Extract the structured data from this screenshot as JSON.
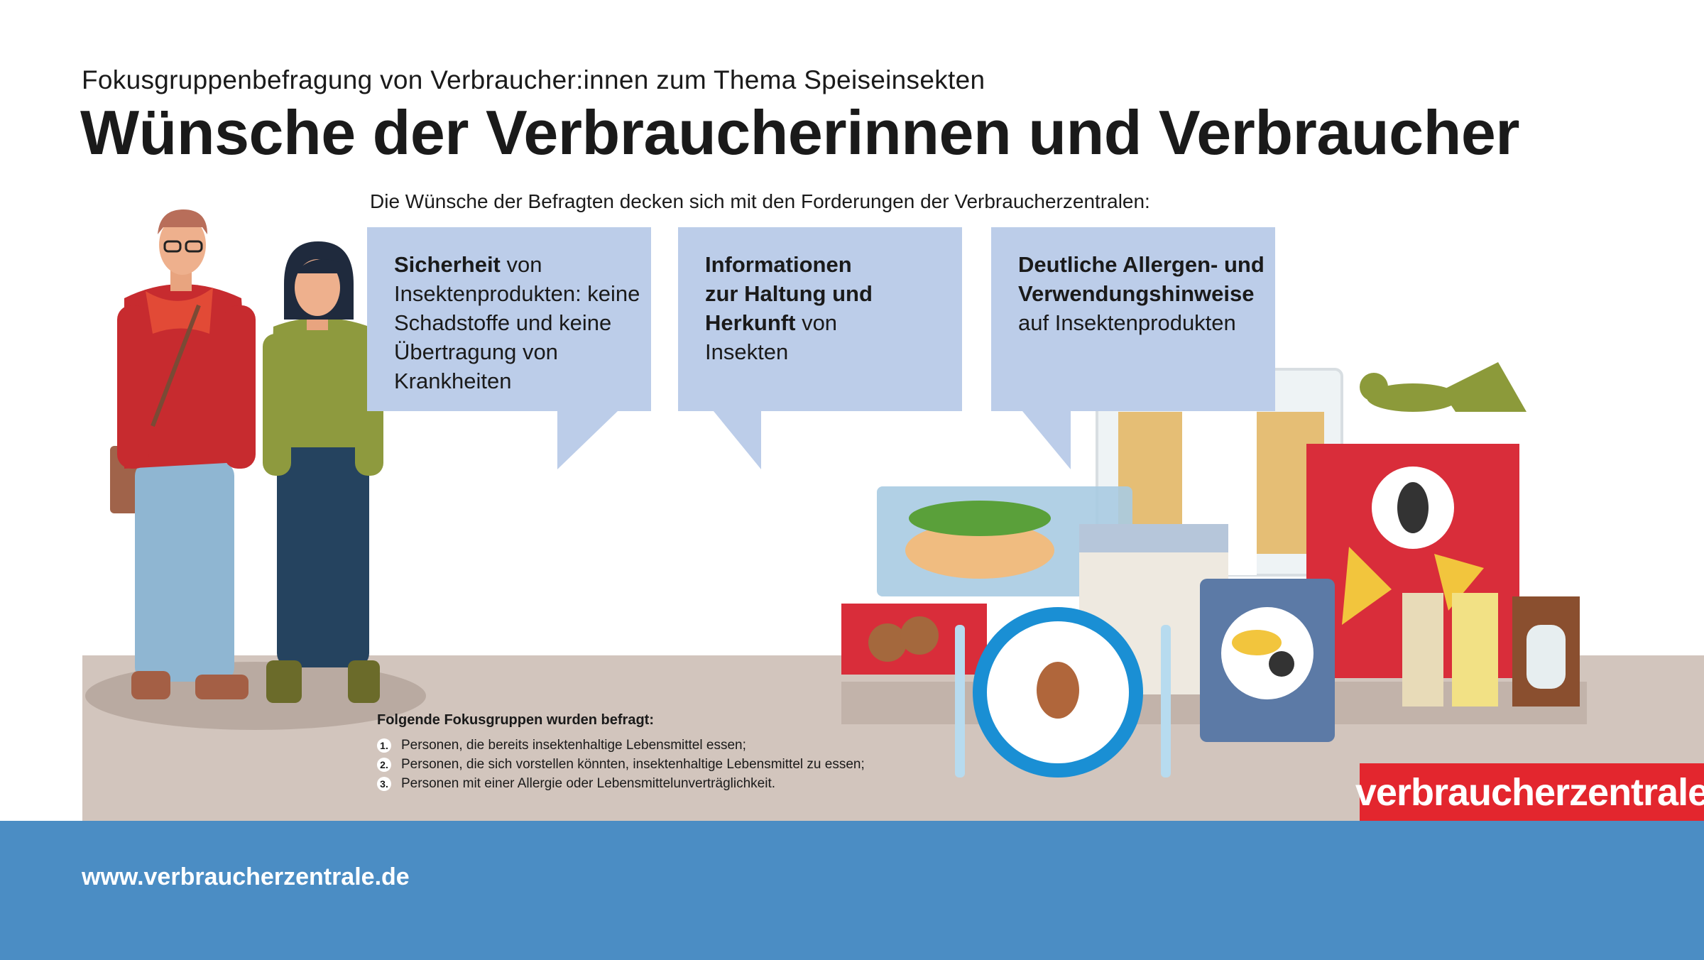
{
  "subtitle": "Fokusgruppenbefragung von Verbraucher:innen zum Thema Speiseinsekten",
  "title": "Wünsche der Verbraucherinnen und Verbraucher",
  "intro": "Die Wünsche der Befragten decken sich mit den Forderungen der Verbraucherzentralen:",
  "bubbles": [
    {
      "bold": "Sicherheit",
      "text": " von Insektenprodukten: keine Schadstoffe und keine Übertragung von Krankheiten"
    },
    {
      "bold": "Informationen zur Haltung und Herkunft",
      "text": " von Insekten"
    },
    {
      "bold": "Deutliche Allergen- und Verwendungshinweise",
      "text": " auf Insektenprodukten"
    }
  ],
  "notes": {
    "heading": "Folgende Fokusgruppen wurden befragt:",
    "items": [
      {
        "num": "1.",
        "text": "Personen, die bereits insektenhaltige Lebensmittel essen;"
      },
      {
        "num": "2.",
        "text": "Personen, die sich vorstellen könnten, insektenhaltige Lebensmittel zu essen;"
      },
      {
        "num": "3.",
        "text": "Personen mit einer Allergie oder Lebensmittelunverträglichkeit."
      }
    ]
  },
  "logo": "verbraucherzentrale",
  "url": "www.verbraucherzentrale.de",
  "colors": {
    "bubble": "#bccde9",
    "floor": "#d2c5bd",
    "footer": "#4b8dc4",
    "brand_red": "#e3262e"
  }
}
